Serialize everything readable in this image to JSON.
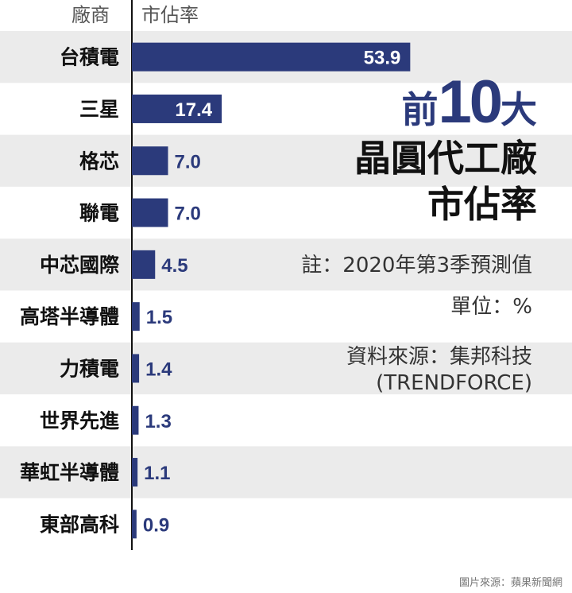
{
  "chart_data": {
    "type": "bar",
    "orientation": "horizontal",
    "header": {
      "category_column": "廠商",
      "value_column": "市佔率"
    },
    "categories": [
      "台積電",
      "三星",
      "格芯",
      "聯電",
      "中芯國際",
      "高塔半導體",
      "力積電",
      "世界先進",
      "華虹半導體",
      "東部高科"
    ],
    "values": [
      53.9,
      17.4,
      7.0,
      7.0,
      4.5,
      1.5,
      1.4,
      1.3,
      1.1,
      0.9
    ],
    "value_labels": [
      "53.9",
      "17.4",
      "7.0",
      "7.0",
      "4.5",
      "1.5",
      "1.4",
      "1.3",
      "1.1",
      "0.9"
    ],
    "title": {
      "prefix": "前",
      "number": "10",
      "suffix": "大",
      "line2": "晶圓代工廠",
      "line3": "市佔率"
    },
    "notes": {
      "note": "註：2020年第3季預測值",
      "unit": "單位：%",
      "source_line1": "資料來源：集邦科技",
      "source_line2": "(TRENDFORCE)"
    },
    "bar_color": "#2b3a7b",
    "stripe_color": "#ebebeb",
    "value_label_color_inside": "#ffffff",
    "value_label_color_outside": "#2b3a7b"
  },
  "footer": {
    "credit": "圖片來源：蘋果新聞網"
  }
}
